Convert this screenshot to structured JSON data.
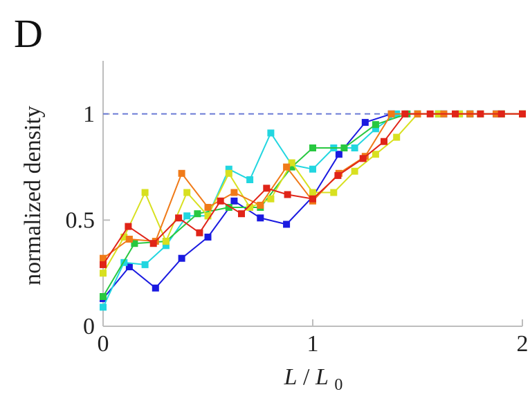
{
  "panel_label": "D",
  "chart_data": {
    "type": "line",
    "ylabel": "normalized density",
    "xlabel_main": "L",
    "xlabel_sep": " /",
    "xlabel_sub_base": "L",
    "xlabel_sub": "0",
    "xlim": [
      0,
      2
    ],
    "ylim": [
      0,
      1.25
    ],
    "xticks": [
      0,
      1,
      2
    ],
    "xtick_labels": [
      "0",
      "1",
      "2"
    ],
    "yticks": [
      0,
      0.5,
      1
    ],
    "ytick_labels": [
      "0",
      "0.5",
      "1"
    ],
    "reference_line": {
      "y": 1,
      "style": "dashed",
      "color": "#6b7bd6"
    },
    "grid": false,
    "legend": "none",
    "marker": "square",
    "series": [
      {
        "color": "#1a1ae0",
        "x": [
          0,
          0.125,
          0.25,
          0.375,
          0.5,
          0.625,
          0.75,
          0.875,
          1.0,
          1.125,
          1.25,
          1.375,
          1.5,
          1.625,
          1.75,
          1.875,
          2.0
        ],
        "y": [
          0.13,
          0.28,
          0.18,
          0.32,
          0.42,
          0.59,
          0.51,
          0.48,
          0.61,
          0.81,
          0.96,
          1.0,
          1.0,
          1.0,
          1.0,
          1.0,
          1.0
        ]
      },
      {
        "color": "#22d6e0",
        "x": [
          0,
          0.1,
          0.2,
          0.3,
          0.4,
          0.5,
          0.6,
          0.7,
          0.8,
          0.9,
          1.0,
          1.1,
          1.2,
          1.3,
          1.4,
          1.5,
          1.6,
          1.7,
          1.8,
          1.9,
          2.0
        ],
        "y": [
          0.09,
          0.3,
          0.29,
          0.38,
          0.52,
          0.52,
          0.74,
          0.69,
          0.91,
          0.76,
          0.74,
          0.84,
          0.84,
          0.93,
          1.0,
          1.0,
          1.0,
          1.0,
          1.0,
          1.0,
          1.0
        ]
      },
      {
        "color": "#28c840",
        "x": [
          0,
          0.15,
          0.3,
          0.45,
          0.6,
          0.75,
          0.9,
          1.0,
          1.15,
          1.3,
          1.45,
          1.6,
          1.75,
          1.9,
          2.0
        ],
        "y": [
          0.14,
          0.39,
          0.4,
          0.53,
          0.56,
          0.56,
          0.75,
          0.84,
          0.84,
          0.95,
          1.0,
          1.0,
          1.0,
          1.0,
          1.0
        ]
      },
      {
        "color": "#d8e020",
        "x": [
          0,
          0.1,
          0.2,
          0.3,
          0.4,
          0.5,
          0.6,
          0.7,
          0.8,
          0.9,
          1.0,
          1.1,
          1.2,
          1.3,
          1.4,
          1.5,
          1.6,
          1.7,
          1.8,
          1.9,
          2.0
        ],
        "y": [
          0.25,
          0.42,
          0.63,
          0.4,
          0.63,
          0.52,
          0.72,
          0.56,
          0.6,
          0.77,
          0.63,
          0.63,
          0.73,
          0.81,
          0.89,
          1.0,
          1.0,
          1.0,
          1.0,
          1.0,
          1.0
        ]
      },
      {
        "color": "#f07a18",
        "x": [
          0,
          0.125,
          0.25,
          0.375,
          0.5,
          0.625,
          0.75,
          0.875,
          1.0,
          1.125,
          1.25,
          1.375,
          1.5,
          1.625,
          1.75,
          1.875,
          2.0
        ],
        "y": [
          0.32,
          0.41,
          0.4,
          0.72,
          0.56,
          0.63,
          0.57,
          0.75,
          0.59,
          0.72,
          0.8,
          1.0,
          1.0,
          1.0,
          1.0,
          1.0,
          1.0
        ]
      },
      {
        "color": "#e02418",
        "x": [
          0,
          0.12,
          0.24,
          0.36,
          0.46,
          0.56,
          0.66,
          0.78,
          0.88,
          1.0,
          1.12,
          1.24,
          1.34,
          1.44,
          1.56,
          1.68,
          1.8,
          1.9,
          2.0
        ],
        "y": [
          0.29,
          0.47,
          0.39,
          0.51,
          0.44,
          0.59,
          0.53,
          0.65,
          0.62,
          0.6,
          0.71,
          0.79,
          0.87,
          1.0,
          1.0,
          1.0,
          1.0,
          1.0,
          1.0
        ]
      }
    ]
  }
}
